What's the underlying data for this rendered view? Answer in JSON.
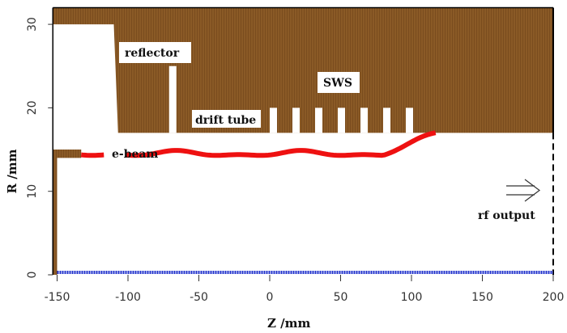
{
  "chart_data": {
    "type": "diagram",
    "xlabel": "Z /mm",
    "ylabel": "R /mm",
    "xlim": [
      -153,
      200
    ],
    "ylim": [
      0,
      32
    ],
    "xticks": [
      -150,
      -100,
      -50,
      0,
      50,
      100,
      150,
      200
    ],
    "yticks": [
      0,
      10,
      20,
      30
    ],
    "annotations": {
      "reflector": "reflector",
      "drift_tube": "drift tube",
      "sws": "SWS",
      "ebeam": "e-beam",
      "rf_output": "rf output"
    },
    "colors": {
      "metal": "#8a5a26",
      "beam": "#ee1111",
      "axis": "#2233cc"
    }
  }
}
